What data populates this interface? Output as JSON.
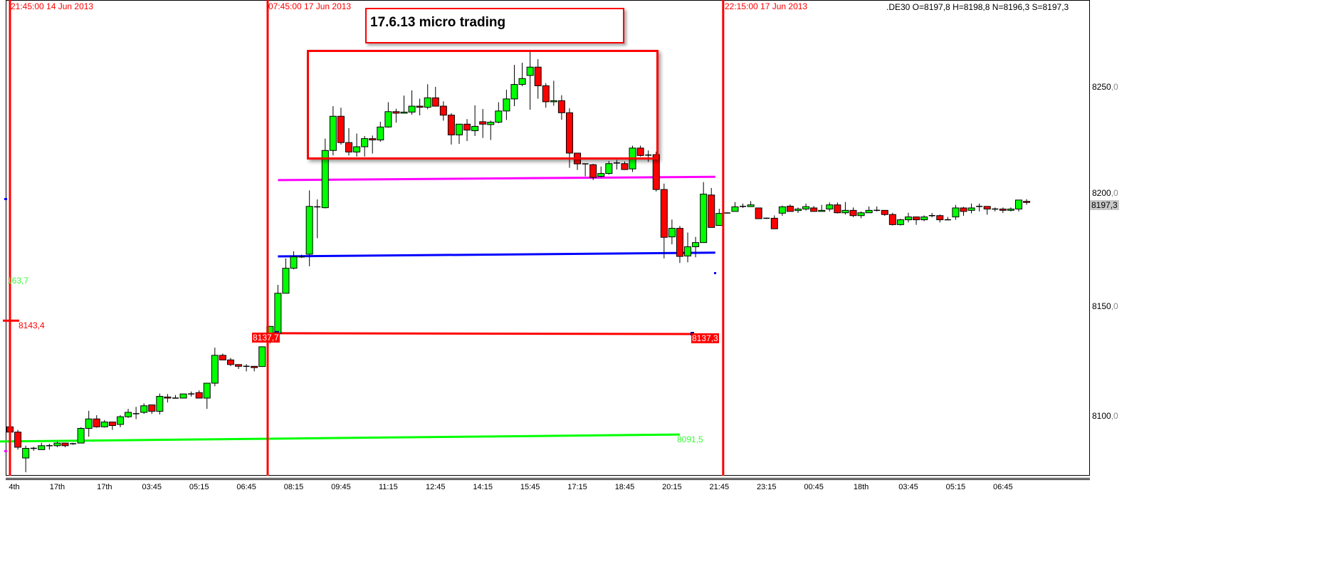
{
  "header": {
    "instrument_quote": ".DE30 O=8197,8 H=8198,8 N=8196,3 S=8197,3"
  },
  "annotations": {
    "title": "17.6.13 micro trading",
    "vertical_lines": [
      {
        "label": "21:45:00 14 Jun 2013",
        "at_candle": 0
      },
      {
        "label": "07:45:00 17 Jun 2013",
        "at_candle": 32.7
      },
      {
        "label": "22:15:00 17 Jun 2013",
        "at_candle": 90.5
      }
    ],
    "left_marker": {
      "label": "8143,4",
      "price": 8143.4
    },
    "left_green_label": {
      "label": "163,7",
      "price": 8163.7
    },
    "current_price_label": "8197,3",
    "colors": {
      "bull": "#00ff00",
      "bear": "#ff0000",
      "vline": "#ff0000",
      "green_line": "#00ff00",
      "red_line": "#ff0000",
      "blue_line": "#0000ff",
      "magenta_line": "#ff00ff"
    }
  },
  "chart_data": {
    "type": "candlestick",
    "title": "",
    "ylim": [
      8072.7,
      8289.6
    ],
    "y_ticks": [
      {
        "int": "8250",
        "dec": ",0",
        "value": 8250
      },
      {
        "int": "8200",
        "dec": ",0",
        "value": 8200
      },
      {
        "int": "8150",
        "dec": ",0",
        "value": 8150
      },
      {
        "int": "8100",
        "dec": ",0",
        "value": 8100
      }
    ],
    "x_tick_labels": [
      "4th",
      "17th",
      "17th",
      "03:45",
      "05:15",
      "06:45",
      "08:15",
      "09:45",
      "11:15",
      "12:45",
      "14:15",
      "15:45",
      "17:15",
      "18:45",
      "20:15",
      "21:45",
      "23:15",
      "00:45",
      "18th",
      "03:45",
      "05:15",
      "06:45"
    ],
    "x_tick_every_candles": 6,
    "ohlc_columns": [
      "open",
      "high",
      "low",
      "close"
    ],
    "candles": [
      [
        8095.0,
        8095.5,
        8092.0,
        8092.6
      ],
      [
        8092.6,
        8093.6,
        8084.6,
        8085.7
      ],
      [
        8080.8,
        8086.4,
        8074.3,
        8085.2
      ],
      [
        8085.2,
        8085.9,
        8084.1,
        8085.2
      ],
      [
        8084.6,
        8087.7,
        8084.6,
        8086.4
      ],
      [
        8086.4,
        8087.3,
        8084.6,
        8086.4
      ],
      [
        8086.4,
        8088.2,
        8085.7,
        8087.6
      ],
      [
        8087.6,
        8087.6,
        8085.7,
        8086.4
      ],
      [
        8087.3,
        8087.7,
        8086.8,
        8087.0
      ],
      [
        8087.6,
        8094.8,
        8087.6,
        8094.3
      ],
      [
        8094.3,
        8102.3,
        8090.5,
        8098.6
      ],
      [
        8098.6,
        8100.3,
        8094.6,
        8095.0
      ],
      [
        8095.0,
        8098.1,
        8094.7,
        8097.2
      ],
      [
        8097.2,
        8097.2,
        8093.6,
        8095.6
      ],
      [
        8096.1,
        8100.3,
        8094.8,
        8099.6
      ],
      [
        8099.6,
        8103.2,
        8099.1,
        8101.6
      ],
      [
        8101.0,
        8104.1,
        8098.5,
        8101.0
      ],
      [
        8101.6,
        8105.7,
        8100.9,
        8104.6
      ],
      [
        8105.0,
        8105.0,
        8100.9,
        8102.1
      ],
      [
        8102.1,
        8110.2,
        8100.6,
        8108.9
      ],
      [
        8108.6,
        8110.0,
        8106.1,
        8108.1
      ],
      [
        8108.1,
        8109.5,
        8108.1,
        8108.1
      ],
      [
        8108.1,
        8110.0,
        8108.1,
        8110.0
      ],
      [
        8110.0,
        8111.1,
        8108.8,
        8110.0
      ],
      [
        8110.6,
        8111.6,
        8108.1,
        8108.1
      ],
      [
        8108.1,
        8114.9,
        8103.2,
        8114.9
      ],
      [
        8114.9,
        8131.1,
        8113.5,
        8127.6
      ],
      [
        8127.6,
        8128.4,
        8125.5,
        8125.5
      ],
      [
        8125.5,
        8126.4,
        8122.7,
        8123.4
      ],
      [
        8123.4,
        8123.4,
        8121.4,
        8122.6
      ],
      [
        8122.6,
        8123.6,
        8120.3,
        8122.6
      ],
      [
        8122.6,
        8122.6,
        8120.3,
        8122.0
      ],
      [
        8122.5,
        8131.5,
        8122.5,
        8131.5
      ],
      [
        8133.6,
        8140.8,
        8133.0,
        8140.8
      ],
      [
        8137.7,
        8159.7,
        8137.7,
        8155.9
      ],
      [
        8155.9,
        8171.8,
        8155.9,
        8167.3
      ],
      [
        8167.3,
        8175.0,
        8166.8,
        8172.5
      ],
      [
        8172.5,
        8173.5,
        8172.0,
        8172.5
      ],
      [
        8173.7,
        8202.8,
        8168.2,
        8195.5
      ],
      [
        8195.3,
        8198.7,
        8181.0,
        8194.9
      ],
      [
        8194.9,
        8226.4,
        8194.6,
        8221.0
      ],
      [
        8221.0,
        8241.2,
        8218.7,
        8236.6
      ],
      [
        8236.6,
        8240.5,
        8223.7,
        8224.6
      ],
      [
        8224.6,
        8231.2,
        8218.7,
        8220.3
      ],
      [
        8220.3,
        8228.7,
        8218.2,
        8222.7
      ],
      [
        8222.7,
        8227.6,
        8218.2,
        8226.4
      ],
      [
        8226.4,
        8227.8,
        8219.6,
        8225.8
      ],
      [
        8225.8,
        8234.1,
        8225.0,
        8231.7
      ],
      [
        8231.7,
        8243.0,
        8231.4,
        8238.7
      ],
      [
        8238.7,
        8240.0,
        8233.7,
        8238.0
      ],
      [
        8238.0,
        8246.0,
        8237.8,
        8238.5
      ],
      [
        8238.5,
        8248.4,
        8237.3,
        8241.2
      ],
      [
        8241.2,
        8244.6,
        8237.0,
        8240.7
      ],
      [
        8240.7,
        8251.2,
        8239.8,
        8245.0
      ],
      [
        8245.0,
        8250.0,
        8241.0,
        8241.2
      ],
      [
        8241.2,
        8243.4,
        8234.6,
        8237.1
      ],
      [
        8237.1,
        8238.0,
        8223.7,
        8228.1
      ],
      [
        8228.1,
        8233.0,
        8224.0,
        8233.0
      ],
      [
        8233.0,
        8235.3,
        8225.3,
        8230.3
      ],
      [
        8230.0,
        8241.6,
        8227.6,
        8232.0
      ],
      [
        8234.1,
        8239.9,
        8226.7,
        8233.0
      ],
      [
        8232.8,
        8234.6,
        8225.8,
        8233.9
      ],
      [
        8233.9,
        8243.0,
        8233.4,
        8239.0
      ],
      [
        8239.0,
        8248.7,
        8234.9,
        8244.5
      ],
      [
        8244.5,
        8260.0,
        8241.2,
        8251.1
      ],
      [
        8251.1,
        8261.0,
        8250.3,
        8253.8
      ],
      [
        8255.2,
        8266.1,
        8239.6,
        8259.0
      ],
      [
        8259.0,
        8262.6,
        8244.6,
        8250.5
      ],
      [
        8250.5,
        8251.7,
        8240.5,
        8243.2
      ],
      [
        8243.2,
        8252.8,
        8241.4,
        8243.7
      ],
      [
        8243.7,
        8246.2,
        8235.0,
        8238.2
      ],
      [
        8238.2,
        8240.2,
        8213.1,
        8219.8
      ],
      [
        8219.8,
        8219.8,
        8212.1,
        8214.9
      ],
      [
        8214.9,
        8214.9,
        8209.2,
        8214.5
      ],
      [
        8214.5,
        8214.9,
        8207.5,
        8208.7
      ],
      [
        8209.2,
        8213.7,
        8208.7,
        8210.5
      ],
      [
        8210.5,
        8216.2,
        8210.0,
        8215.0
      ],
      [
        8215.2,
        8216.7,
        8212.3,
        8215.3
      ],
      [
        8215.0,
        8216.0,
        8212.1,
        8212.3
      ],
      [
        8212.6,
        8223.2,
        8211.2,
        8222.1
      ],
      [
        8222.1,
        8223.2,
        8218.2,
        8218.7
      ],
      [
        8218.7,
        8221.0,
        8215.8,
        8218.9
      ],
      [
        8219.1,
        8220.5,
        8202.3,
        8203.2
      ],
      [
        8203.2,
        8205.9,
        8171.8,
        8181.4
      ],
      [
        8181.6,
        8189.5,
        8178.2,
        8185.5
      ],
      [
        8185.5,
        8186.6,
        8169.7,
        8172.7
      ],
      [
        8172.9,
        8183.6,
        8170.0,
        8177.1
      ],
      [
        8177.1,
        8181.6,
        8172.3,
        8179.0
      ],
      [
        8179.0,
        8206.6,
        8179.0,
        8201.1
      ],
      [
        8200.7,
        8203.9,
        8185.9,
        8185.9
      ],
      [
        8186.8,
        8194.4,
        8186.8,
        8192.3
      ],
      [
        8192.5,
        8192.7,
        8192.3,
        8192.5
      ],
      [
        8193.2,
        8197.5,
        8193.2,
        8195.3
      ],
      [
        8195.5,
        8196.8,
        8194.8,
        8195.5
      ],
      [
        8195.4,
        8197.9,
        8195.4,
        8196.2
      ],
      [
        8194.8,
        8194.8,
        8189.9,
        8189.9
      ],
      [
        8190.1,
        8190.4,
        8189.8,
        8190.1
      ],
      [
        8190.1,
        8191.4,
        8185.3,
        8185.3
      ],
      [
        8192.4,
        8195.9,
        8191.2,
        8195.3
      ],
      [
        8195.6,
        8196.4,
        8193.2,
        8193.2
      ],
      [
        8193.6,
        8195.0,
        8192.5,
        8194.3
      ],
      [
        8194.3,
        8196.8,
        8193.6,
        8195.4
      ],
      [
        8194.8,
        8195.7,
        8193.2,
        8193.2
      ],
      [
        8193.2,
        8196.2,
        8193.2,
        8193.7
      ],
      [
        8194.3,
        8197.3,
        8193.2,
        8196.2
      ],
      [
        8196.2,
        8197.3,
        8192.3,
        8192.6
      ],
      [
        8192.6,
        8197.5,
        8191.8,
        8193.7
      ],
      [
        8193.7,
        8195.0,
        8190.6,
        8191.3
      ],
      [
        8191.3,
        8193.2,
        8190.1,
        8192.6
      ],
      [
        8192.6,
        8195.5,
        8192.6,
        8193.7
      ],
      [
        8193.7,
        8195.5,
        8193.2,
        8193.7
      ],
      [
        8193.7,
        8193.7,
        8191.2,
        8191.8
      ],
      [
        8191.8,
        8192.6,
        8186.8,
        8187.2
      ],
      [
        8187.2,
        8189.9,
        8186.8,
        8189.4
      ],
      [
        8189.4,
        8192.6,
        8188.2,
        8190.7
      ],
      [
        8190.7,
        8190.7,
        8187.1,
        8189.4
      ],
      [
        8189.4,
        8191.4,
        8188.8,
        8190.7
      ],
      [
        8191.3,
        8192.5,
        8190.5,
        8191.3
      ],
      [
        8191.3,
        8191.8,
        8188.2,
        8189.4
      ],
      [
        8189.4,
        8190.7,
        8189.4,
        8189.4
      ],
      [
        8190.7,
        8196.2,
        8189.4,
        8194.8
      ],
      [
        8194.8,
        8195.3,
        8191.2,
        8193.2
      ],
      [
        8193.7,
        8196.8,
        8192.3,
        8194.8
      ],
      [
        8195.5,
        8196.8,
        8193.2,
        8195.5
      ],
      [
        8195.5,
        8195.5,
        8191.7,
        8194.3
      ],
      [
        8194.3,
        8195.0,
        8193.2,
        8194.3
      ],
      [
        8194.3,
        8195.0,
        8192.5,
        8193.7
      ],
      [
        8193.7,
        8195.0,
        8193.2,
        8194.3
      ],
      [
        8194.3,
        8198.4,
        8193.2,
        8198.4
      ],
      [
        8197.8,
        8198.8,
        8196.3,
        8197.3
      ]
    ],
    "lines": [
      {
        "color": "#00ff00",
        "from_candle": -2,
        "to_candle": 85,
        "price_start": 8088.3,
        "price_end": 8091.5,
        "label": "8091,5"
      },
      {
        "color": "#ff0000",
        "from_candle": 33,
        "to_candle": 86.5,
        "price_start": 8137.7,
        "price_end": 8137.3,
        "label_start": "8137,7",
        "label": "8137,3"
      },
      {
        "color": "#0000ff",
        "from_candle": 34,
        "to_candle": 89.5,
        "price_start": 8172.7,
        "price_end": 8174.4
      },
      {
        "color": "#ff00ff",
        "from_candle": 34,
        "to_candle": 89.5,
        "price_start": 8207.5,
        "price_end": 8209.0
      }
    ]
  }
}
